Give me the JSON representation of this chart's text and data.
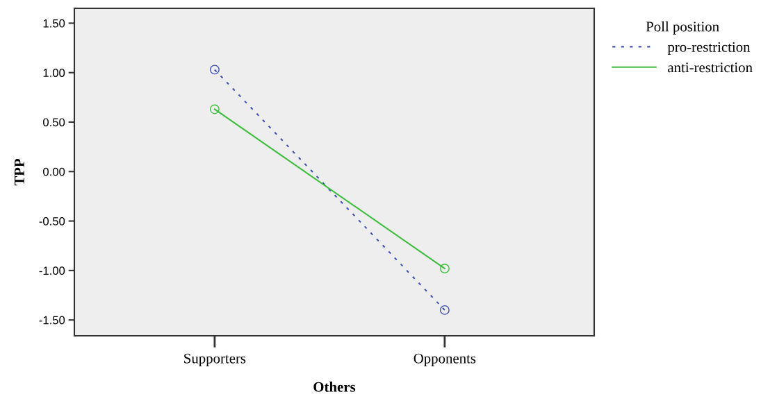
{
  "chart_data": {
    "type": "line",
    "xlabel": "Others",
    "ylabel": "TPP",
    "legend_title": "Poll position",
    "categories": [
      "Supporters",
      "Opponents"
    ],
    "series": [
      {
        "name": "pro-restriction",
        "color": "#3f51b5",
        "values": [
          1.03,
          -1.4
        ],
        "line_style": "dotted"
      },
      {
        "name": "anti-restriction",
        "color": "#3ebd3e",
        "values": [
          0.63,
          -0.98
        ],
        "line_style": "solid"
      }
    ],
    "ylim": [
      -1.66,
      1.65
    ],
    "yticks": [
      {
        "value": -1.5,
        "label": "-1.50"
      },
      {
        "value": -1.0,
        "label": "-1.00"
      },
      {
        "value": -0.5,
        "label": "-0.50"
      },
      {
        "value": 0.0,
        "label": "0.00"
      },
      {
        "value": 0.5,
        "label": "0.50"
      },
      {
        "value": 1.0,
        "label": "1.00"
      },
      {
        "value": 1.5,
        "label": "1.50"
      }
    ],
    "marker": "circle",
    "grid": false,
    "legend": "top right"
  }
}
